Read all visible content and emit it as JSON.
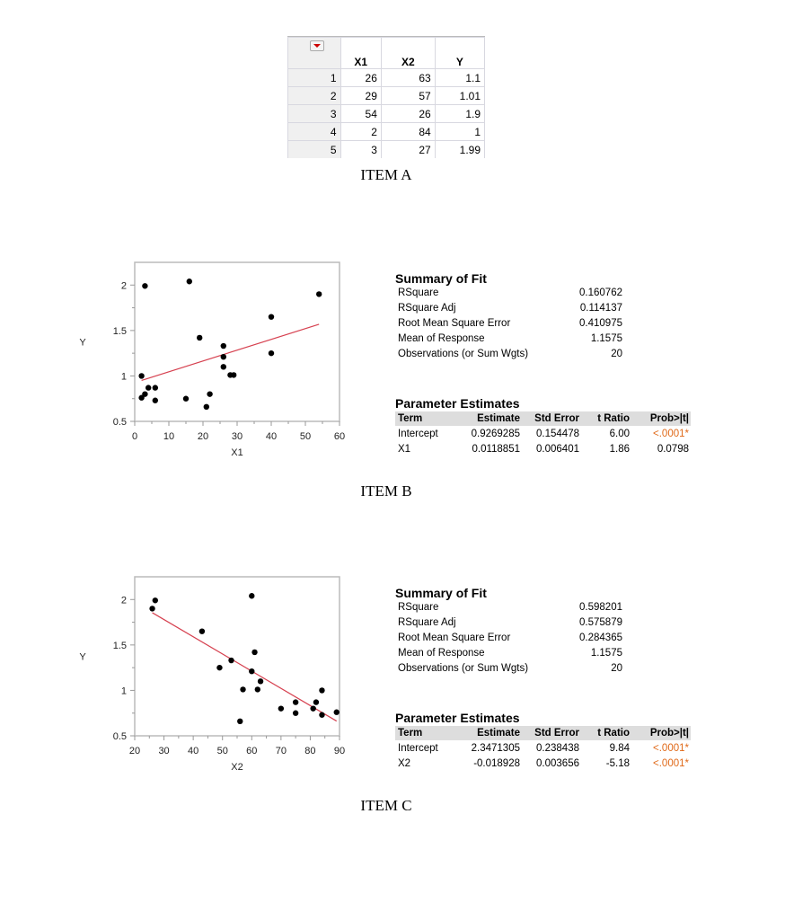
{
  "item_a": {
    "label": "ITEM A",
    "table": {
      "columns": [
        "X1",
        "X2",
        "Y"
      ],
      "rows": [
        {
          "n": "1",
          "X1": "26",
          "X2": "63",
          "Y": "1.1"
        },
        {
          "n": "2",
          "X1": "29",
          "X2": "57",
          "Y": "1.01"
        },
        {
          "n": "3",
          "X1": "54",
          "X2": "26",
          "Y": "1.9"
        },
        {
          "n": "4",
          "X1": "2",
          "X2": "84",
          "Y": "1"
        },
        {
          "n": "5",
          "X1": "3",
          "X2": "27",
          "Y": "1.99"
        }
      ]
    }
  },
  "item_b": {
    "label": "ITEM B",
    "summary": {
      "title": "Summary of Fit",
      "rows": [
        {
          "k": "RSquare",
          "v": "0.160762"
        },
        {
          "k": "RSquare Adj",
          "v": "0.114137"
        },
        {
          "k": "Root Mean Square Error",
          "v": "0.410975"
        },
        {
          "k": "Mean of Response",
          "v": "1.1575"
        },
        {
          "k": "Observations (or Sum Wgts)",
          "v": "20"
        }
      ]
    },
    "params": {
      "title": "Parameter Estimates",
      "headers": [
        "Term",
        "Estimate",
        "Std Error",
        "t Ratio",
        "Prob>|t|"
      ],
      "rows": [
        [
          "Intercept",
          "0.9269285",
          "0.154478",
          "6.00",
          "<.0001*"
        ],
        [
          "X1",
          "0.0118851",
          "0.006401",
          "1.86",
          "0.0798"
        ]
      ]
    }
  },
  "item_c": {
    "label": "ITEM C",
    "summary": {
      "title": "Summary of Fit",
      "rows": [
        {
          "k": "RSquare",
          "v": "0.598201"
        },
        {
          "k": "RSquare Adj",
          "v": "0.575879"
        },
        {
          "k": "Root Mean Square Error",
          "v": "0.284365"
        },
        {
          "k": "Mean of Response",
          "v": "1.1575"
        },
        {
          "k": "Observations (or Sum Wgts)",
          "v": "20"
        }
      ]
    },
    "params": {
      "title": "Parameter Estimates",
      "headers": [
        "Term",
        "Estimate",
        "Std Error",
        "t Ratio",
        "Prob>|t|"
      ],
      "rows": [
        [
          "Intercept",
          "2.3471305",
          "0.238438",
          "9.84",
          "<.0001*"
        ],
        [
          "X2",
          "-0.018928",
          "0.003656",
          "-5.18",
          "<.0001*"
        ]
      ]
    }
  },
  "colors": {
    "fit_line": "#d6404f",
    "significant": "#e06a1a",
    "points": "#000000"
  },
  "chart_data": [
    {
      "type": "scatter",
      "xlabel": "X1",
      "ylabel": "Y",
      "xlim": [
        0,
        60
      ],
      "ylim": [
        0.5,
        2.25
      ],
      "xticks": [
        0,
        10,
        20,
        30,
        40,
        50,
        60
      ],
      "yticks": [
        0.5,
        1,
        1.5,
        2
      ],
      "grid": false,
      "points": [
        [
          3,
          1.99
        ],
        [
          16,
          2.04
        ],
        [
          54,
          1.9
        ],
        [
          40,
          1.65
        ],
        [
          19,
          1.42
        ],
        [
          26,
          1.33
        ],
        [
          26,
          1.21
        ],
        [
          40,
          1.25
        ],
        [
          26,
          1.1
        ],
        [
          28,
          1.01
        ],
        [
          29,
          1.01
        ],
        [
          2,
          1.0
        ],
        [
          4,
          0.87
        ],
        [
          6,
          0.87
        ],
        [
          3,
          0.8
        ],
        [
          2,
          0.76
        ],
        [
          6,
          0.73
        ],
        [
          15,
          0.75
        ],
        [
          22,
          0.8
        ],
        [
          21,
          0.66
        ]
      ],
      "fit_line": {
        "intercept": 0.9269285,
        "slope": 0.0118851,
        "x_range": [
          2,
          54
        ]
      }
    },
    {
      "type": "scatter",
      "xlabel": "X2",
      "ylabel": "Y",
      "xlim": [
        20,
        90
      ],
      "ylim": [
        0.5,
        2.25
      ],
      "xticks": [
        20,
        30,
        40,
        50,
        60,
        70,
        80,
        90
      ],
      "yticks": [
        0.5,
        1,
        1.5,
        2
      ],
      "grid": false,
      "points": [
        [
          26,
          1.9
        ],
        [
          27,
          1.99
        ],
        [
          60,
          2.04
        ],
        [
          43,
          1.65
        ],
        [
          53,
          1.33
        ],
        [
          49,
          1.25
        ],
        [
          61,
          1.42
        ],
        [
          60,
          1.21
        ],
        [
          63,
          1.1
        ],
        [
          57,
          1.01
        ],
        [
          62,
          1.01
        ],
        [
          56,
          0.66
        ],
        [
          70,
          0.8
        ],
        [
          75,
          0.87
        ],
        [
          75,
          0.75
        ],
        [
          81,
          0.8
        ],
        [
          82,
          0.87
        ],
        [
          84,
          1.0
        ],
        [
          84,
          0.73
        ],
        [
          89,
          0.76
        ]
      ],
      "fit_line": {
        "intercept": 2.3471305,
        "slope": -0.018928,
        "x_range": [
          26,
          89
        ]
      }
    }
  ]
}
